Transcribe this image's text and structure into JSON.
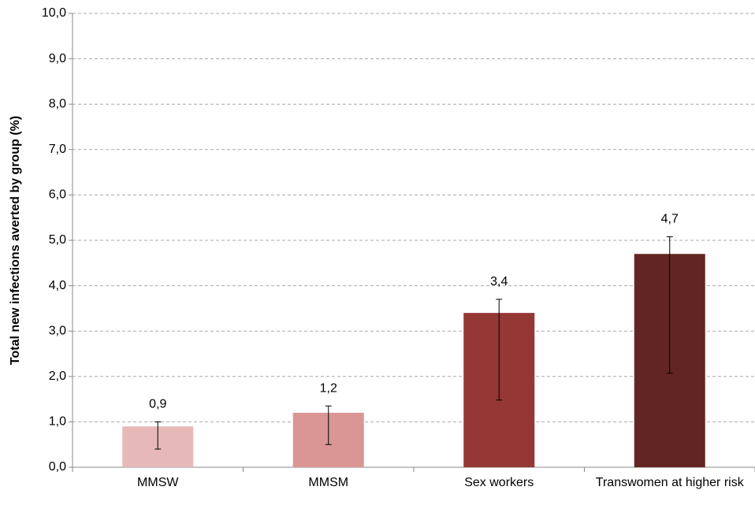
{
  "chart_data": {
    "type": "bar",
    "y_label": "Total new infections averted by group (%)",
    "categories": [
      "MMSW",
      "MMSM",
      "Sex workers",
      "Transwomen at higher risk"
    ],
    "values": [
      0.9,
      1.2,
      3.4,
      4.7
    ],
    "value_labels": [
      "0,9",
      "1,2",
      "3,4",
      "4,7"
    ],
    "lower": [
      0.4,
      0.5,
      1.48,
      2.07
    ],
    "upper": [
      1.0,
      1.35,
      3.7,
      5.08
    ],
    "colors": [
      "#e6b9b8",
      "#d99694",
      "#953735",
      "#632523"
    ],
    "ylim": [
      0,
      10
    ],
    "yticks": [
      {
        "value": 0,
        "label": "0,0"
      },
      {
        "value": 1,
        "label": "1,0"
      },
      {
        "value": 2,
        "label": "2,0"
      },
      {
        "value": 3,
        "label": "3,0"
      },
      {
        "value": 4,
        "label": "4,0"
      },
      {
        "value": 5,
        "label": "5,0"
      },
      {
        "value": 6,
        "label": "6,0"
      },
      {
        "value": 7,
        "label": "7,0"
      },
      {
        "value": 8,
        "label": "8,0"
      },
      {
        "value": 9,
        "label": "9,0"
      },
      {
        "value": 10,
        "label": "10,0"
      }
    ],
    "grid": true
  }
}
